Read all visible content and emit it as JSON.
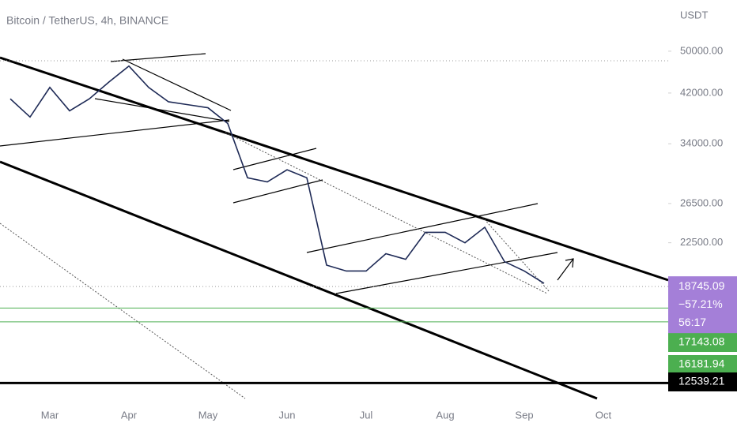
{
  "chart_data": {
    "type": "line",
    "title": "Bitcoin / TetherUS, 4h, BINANCE",
    "y_label": "USDT",
    "categories": [
      null,
      null,
      "Mar",
      null,
      null,
      null,
      "Apr",
      null,
      null,
      null,
      "May",
      null,
      null,
      null,
      "Jun",
      null,
      null,
      null,
      "Jul",
      null,
      null,
      null,
      "Aug",
      null,
      null,
      null,
      "Sep",
      null,
      null,
      null,
      "Oct"
    ],
    "values": [
      41000,
      38000,
      43000,
      39000,
      41000,
      44000,
      47000,
      43000,
      40500,
      40000,
      39500,
      37000,
      29500,
      29000,
      30500,
      29500,
      20500,
      20000,
      20000,
      21500,
      21000,
      23500,
      23500,
      22500,
      24000,
      20800,
      20000,
      19000,
      null,
      null,
      null
    ],
    "color": "#1e2a56",
    "log_scale": true,
    "ylim": [
      11190,
      61900
    ],
    "yticks": [
      {
        "value": 50000,
        "label": "50000.00"
      },
      {
        "value": 42000,
        "label": "42000.00"
      },
      {
        "value": 34000,
        "label": "34000.00"
      },
      {
        "value": 26500,
        "label": "26500.00"
      },
      {
        "value": 22500,
        "label": "22500.00"
      }
    ],
    "last_price": {
      "value": 18745.09,
      "change": {
        "value": -57.21,
        "label": "−57.21%"
      },
      "countdown": "56:17",
      "color": "#a47fd8"
    },
    "levels": [
      {
        "value": 17143.08,
        "color": "#4caf50"
      },
      {
        "value": 16181.94,
        "color": "#4caf50"
      },
      {
        "value": 12539.21,
        "color": "#000000"
      }
    ]
  }
}
